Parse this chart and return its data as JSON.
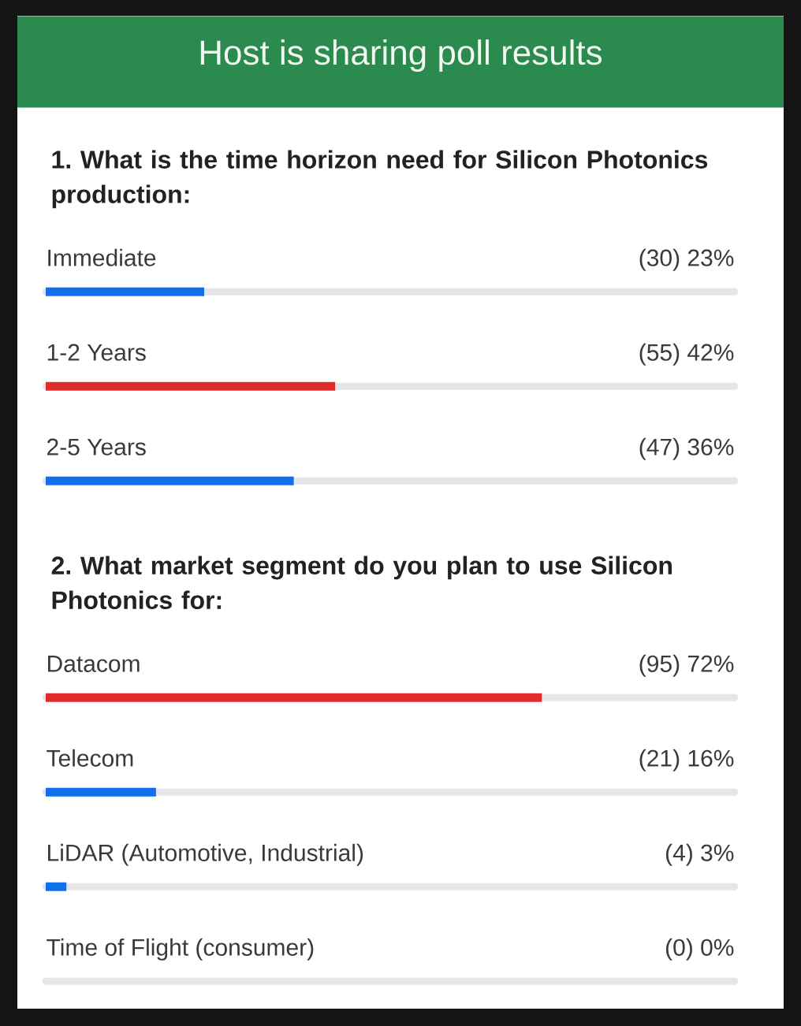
{
  "chart_data": [
    {
      "type": "bar",
      "orientation": "horizontal",
      "title": "Host is sharing poll results",
      "subtitle": "1. What is the time horizon need for Silicon Photonics production:",
      "categories": [
        "Immediate",
        "1-2 Years",
        "2-5 Years"
      ],
      "values": [
        23,
        42,
        36
      ],
      "value_labels": [
        "(30) 23%",
        "(55) 42%",
        "(47) 36%"
      ],
      "colors": [
        "#0e71eb",
        "#e02c2c",
        "#0e71eb"
      ],
      "xlim": [
        0,
        100
      ]
    },
    {
      "type": "bar",
      "orientation": "horizontal",
      "title": "2. What market segment do you plan to use Silicon Photonics for:",
      "categories": [
        "Datacom",
        "Telecom",
        "LiDAR (Automotive, Industrial)",
        "Time of Flight (consumer)"
      ],
      "values": [
        72,
        16,
        3,
        0
      ],
      "value_labels": [
        "(95) 72%",
        "(21) 16%",
        "(4) 3%",
        "(0) 0%"
      ],
      "colors": [
        "#e02c2c",
        "#0e71eb",
        "#0e71eb",
        "#0e71eb"
      ],
      "xlim": [
        0,
        100
      ]
    }
  ]
}
